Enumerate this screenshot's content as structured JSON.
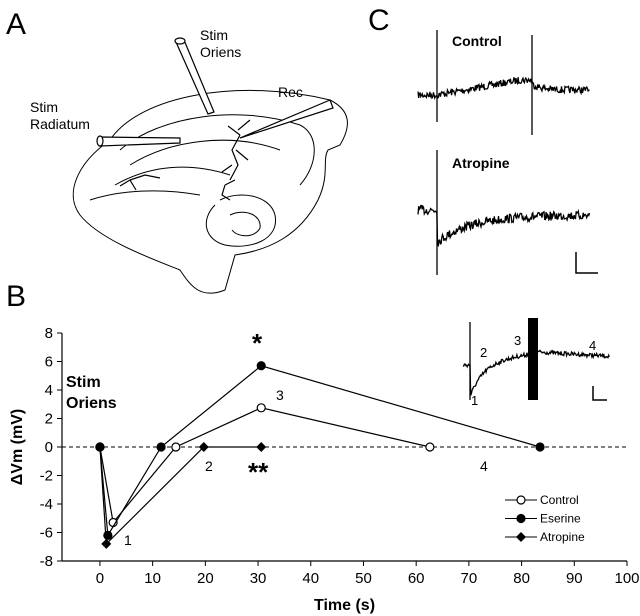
{
  "panels": {
    "a": "A",
    "b": "B",
    "c": "C"
  },
  "panel_a": {
    "stim_oriens": [
      "Stim",
      "Oriens"
    ],
    "stim_radiatum": [
      "Stim",
      "Radiatum"
    ],
    "rec": "Rec"
  },
  "panel_c": {
    "traces": [
      "Control",
      "Atropine"
    ]
  },
  "chart_data": {
    "type": "line",
    "xlabel": "Time (s)",
    "ylabel": "ΔVm (mV)",
    "xlim": [
      -7.2,
      100
    ],
    "xticks": [
      0,
      10,
      20,
      30,
      40,
      50,
      60,
      70,
      80,
      90,
      100
    ],
    "ylim": [
      -8,
      8
    ],
    "yticks": [
      -8,
      -6,
      -4,
      -2,
      0,
      2,
      4,
      6,
      8
    ],
    "zero_line": "dashed",
    "label": [
      "Stim",
      "Oriens"
    ],
    "annotations": [
      "*",
      "**",
      "1",
      "2",
      "3",
      "4"
    ],
    "inset_labels": [
      "1",
      "2",
      "3",
      "4"
    ],
    "legend": "lower right",
    "series": [
      {
        "name": "Control",
        "color": "#000000",
        "marker": "open-circle",
        "x": [
          0,
          2.5,
          14.4,
          30.6,
          62.6
        ],
        "values": [
          0,
          -5.3,
          0,
          2.75,
          0
        ]
      },
      {
        "name": "Eserine",
        "color": "#000000",
        "marker": "circle",
        "x": [
          0,
          1.5,
          11.6,
          30.6,
          83.5
        ],
        "values": [
          0,
          -6.2,
          0,
          5.7,
          0
        ]
      },
      {
        "name": "Atropine",
        "color": "#000000",
        "marker": "diamond",
        "x": [
          0,
          1.2,
          19.7,
          30.6
        ],
        "values": [
          0,
          -6.8,
          0,
          0
        ]
      }
    ]
  }
}
